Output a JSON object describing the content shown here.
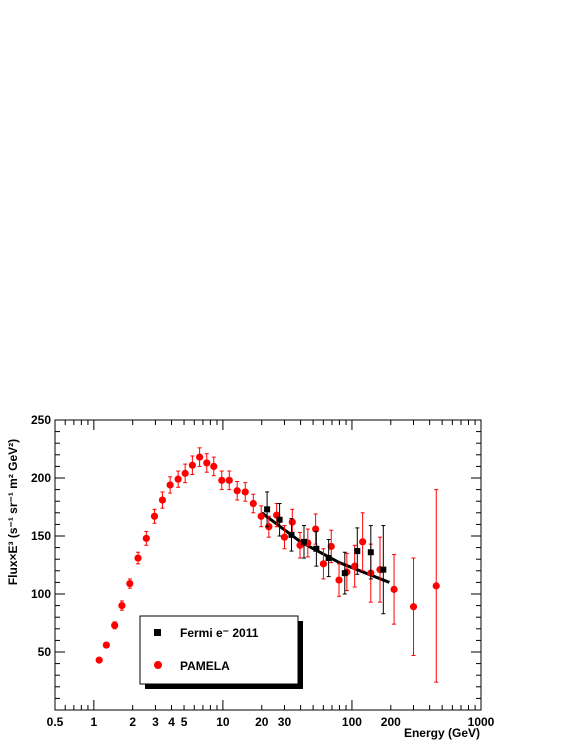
{
  "chart_data": {
    "type": "scatter",
    "xscale": "log",
    "xlim": [
      0.5,
      1000
    ],
    "ylim": [
      0,
      250
    ],
    "xlabel": "Energy (GeV)",
    "ylabel": "Flux×E³ (s⁻¹ sr⁻¹ m² GeV²)",
    "x_tick_labels": [
      "0.5",
      "1",
      "2",
      "3",
      "4",
      "5",
      "10",
      "20",
      "30",
      "100",
      "200",
      "1000"
    ],
    "y_tick_labels": [
      "50",
      "100",
      "150",
      "200",
      "250"
    ],
    "legend_position": "bottom-left",
    "series": [
      {
        "name": "PAMELA",
        "color": "#ff0000",
        "marker": "circle",
        "points": [
          {
            "x": 1.1,
            "y": 43,
            "err": 2
          },
          {
            "x": 1.25,
            "y": 56,
            "err": 2
          },
          {
            "x": 1.45,
            "y": 73,
            "err": 3
          },
          {
            "x": 1.65,
            "y": 90,
            "err": 4
          },
          {
            "x": 1.9,
            "y": 109,
            "err": 4
          },
          {
            "x": 2.2,
            "y": 131,
            "err": 5
          },
          {
            "x": 2.55,
            "y": 148,
            "err": 6
          },
          {
            "x": 2.95,
            "y": 167,
            "err": 6
          },
          {
            "x": 3.4,
            "y": 181,
            "err": 7
          },
          {
            "x": 3.9,
            "y": 194,
            "err": 7
          },
          {
            "x": 4.5,
            "y": 199,
            "err": 7
          },
          {
            "x": 5.1,
            "y": 204,
            "err": 8
          },
          {
            "x": 5.8,
            "y": 211,
            "err": 8
          },
          {
            "x": 6.6,
            "y": 218,
            "err": 8
          },
          {
            "x": 7.5,
            "y": 213,
            "err": 8
          },
          {
            "x": 8.5,
            "y": 210,
            "err": 8
          },
          {
            "x": 9.8,
            "y": 198,
            "err": 8
          },
          {
            "x": 11.2,
            "y": 198,
            "err": 8
          },
          {
            "x": 12.9,
            "y": 189,
            "err": 8
          },
          {
            "x": 14.9,
            "y": 188,
            "err": 8
          },
          {
            "x": 17.2,
            "y": 178,
            "err": 8
          },
          {
            "x": 19.8,
            "y": 167,
            "err": 9
          },
          {
            "x": 22.7,
            "y": 158,
            "err": 9
          },
          {
            "x": 26.1,
            "y": 168,
            "err": 10
          },
          {
            "x": 30.0,
            "y": 149,
            "err": 10
          },
          {
            "x": 34.5,
            "y": 162,
            "err": 11
          },
          {
            "x": 39.6,
            "y": 142,
            "err": 11
          },
          {
            "x": 45.5,
            "y": 144,
            "err": 12
          },
          {
            "x": 52.3,
            "y": 156,
            "err": 13
          },
          {
            "x": 60.1,
            "y": 126,
            "err": 13
          },
          {
            "x": 69.1,
            "y": 141,
            "err": 14
          },
          {
            "x": 79.4,
            "y": 112,
            "err": 14
          },
          {
            "x": 91.3,
            "y": 119,
            "err": 16
          },
          {
            "x": 105,
            "y": 124,
            "err": 18
          },
          {
            "x": 121,
            "y": 145,
            "err": 25
          },
          {
            "x": 140,
            "y": 118,
            "err": 25
          },
          {
            "x": 165,
            "y": 121,
            "err": 28
          },
          {
            "x": 212,
            "y": 104,
            "err": 30
          },
          {
            "x": 300,
            "y": 89,
            "err": 42
          },
          {
            "x": 450,
            "y": 107,
            "err": 83
          }
        ]
      },
      {
        "name": "Fermi e⁻ 2011",
        "color": "#000000",
        "marker": "square",
        "points": [
          {
            "x": 22,
            "y": 173,
            "err": 15
          },
          {
            "x": 27.5,
            "y": 164,
            "err": 14
          },
          {
            "x": 34,
            "y": 151,
            "err": 14
          },
          {
            "x": 42.5,
            "y": 145,
            "err": 14
          },
          {
            "x": 53,
            "y": 139,
            "err": 15
          },
          {
            "x": 66,
            "y": 131,
            "err": 16
          },
          {
            "x": 88,
            "y": 118,
            "err": 18
          },
          {
            "x": 110,
            "y": 137,
            "err": 20
          },
          {
            "x": 140,
            "y": 136,
            "err": 23
          },
          {
            "x": 175,
            "y": 121,
            "err": 38
          }
        ]
      }
    ],
    "fit_line": {
      "color": "#000000",
      "points": [
        [
          20,
          170
        ],
        [
          40,
          145
        ],
        [
          80,
          127
        ],
        [
          195,
          110
        ]
      ]
    }
  }
}
